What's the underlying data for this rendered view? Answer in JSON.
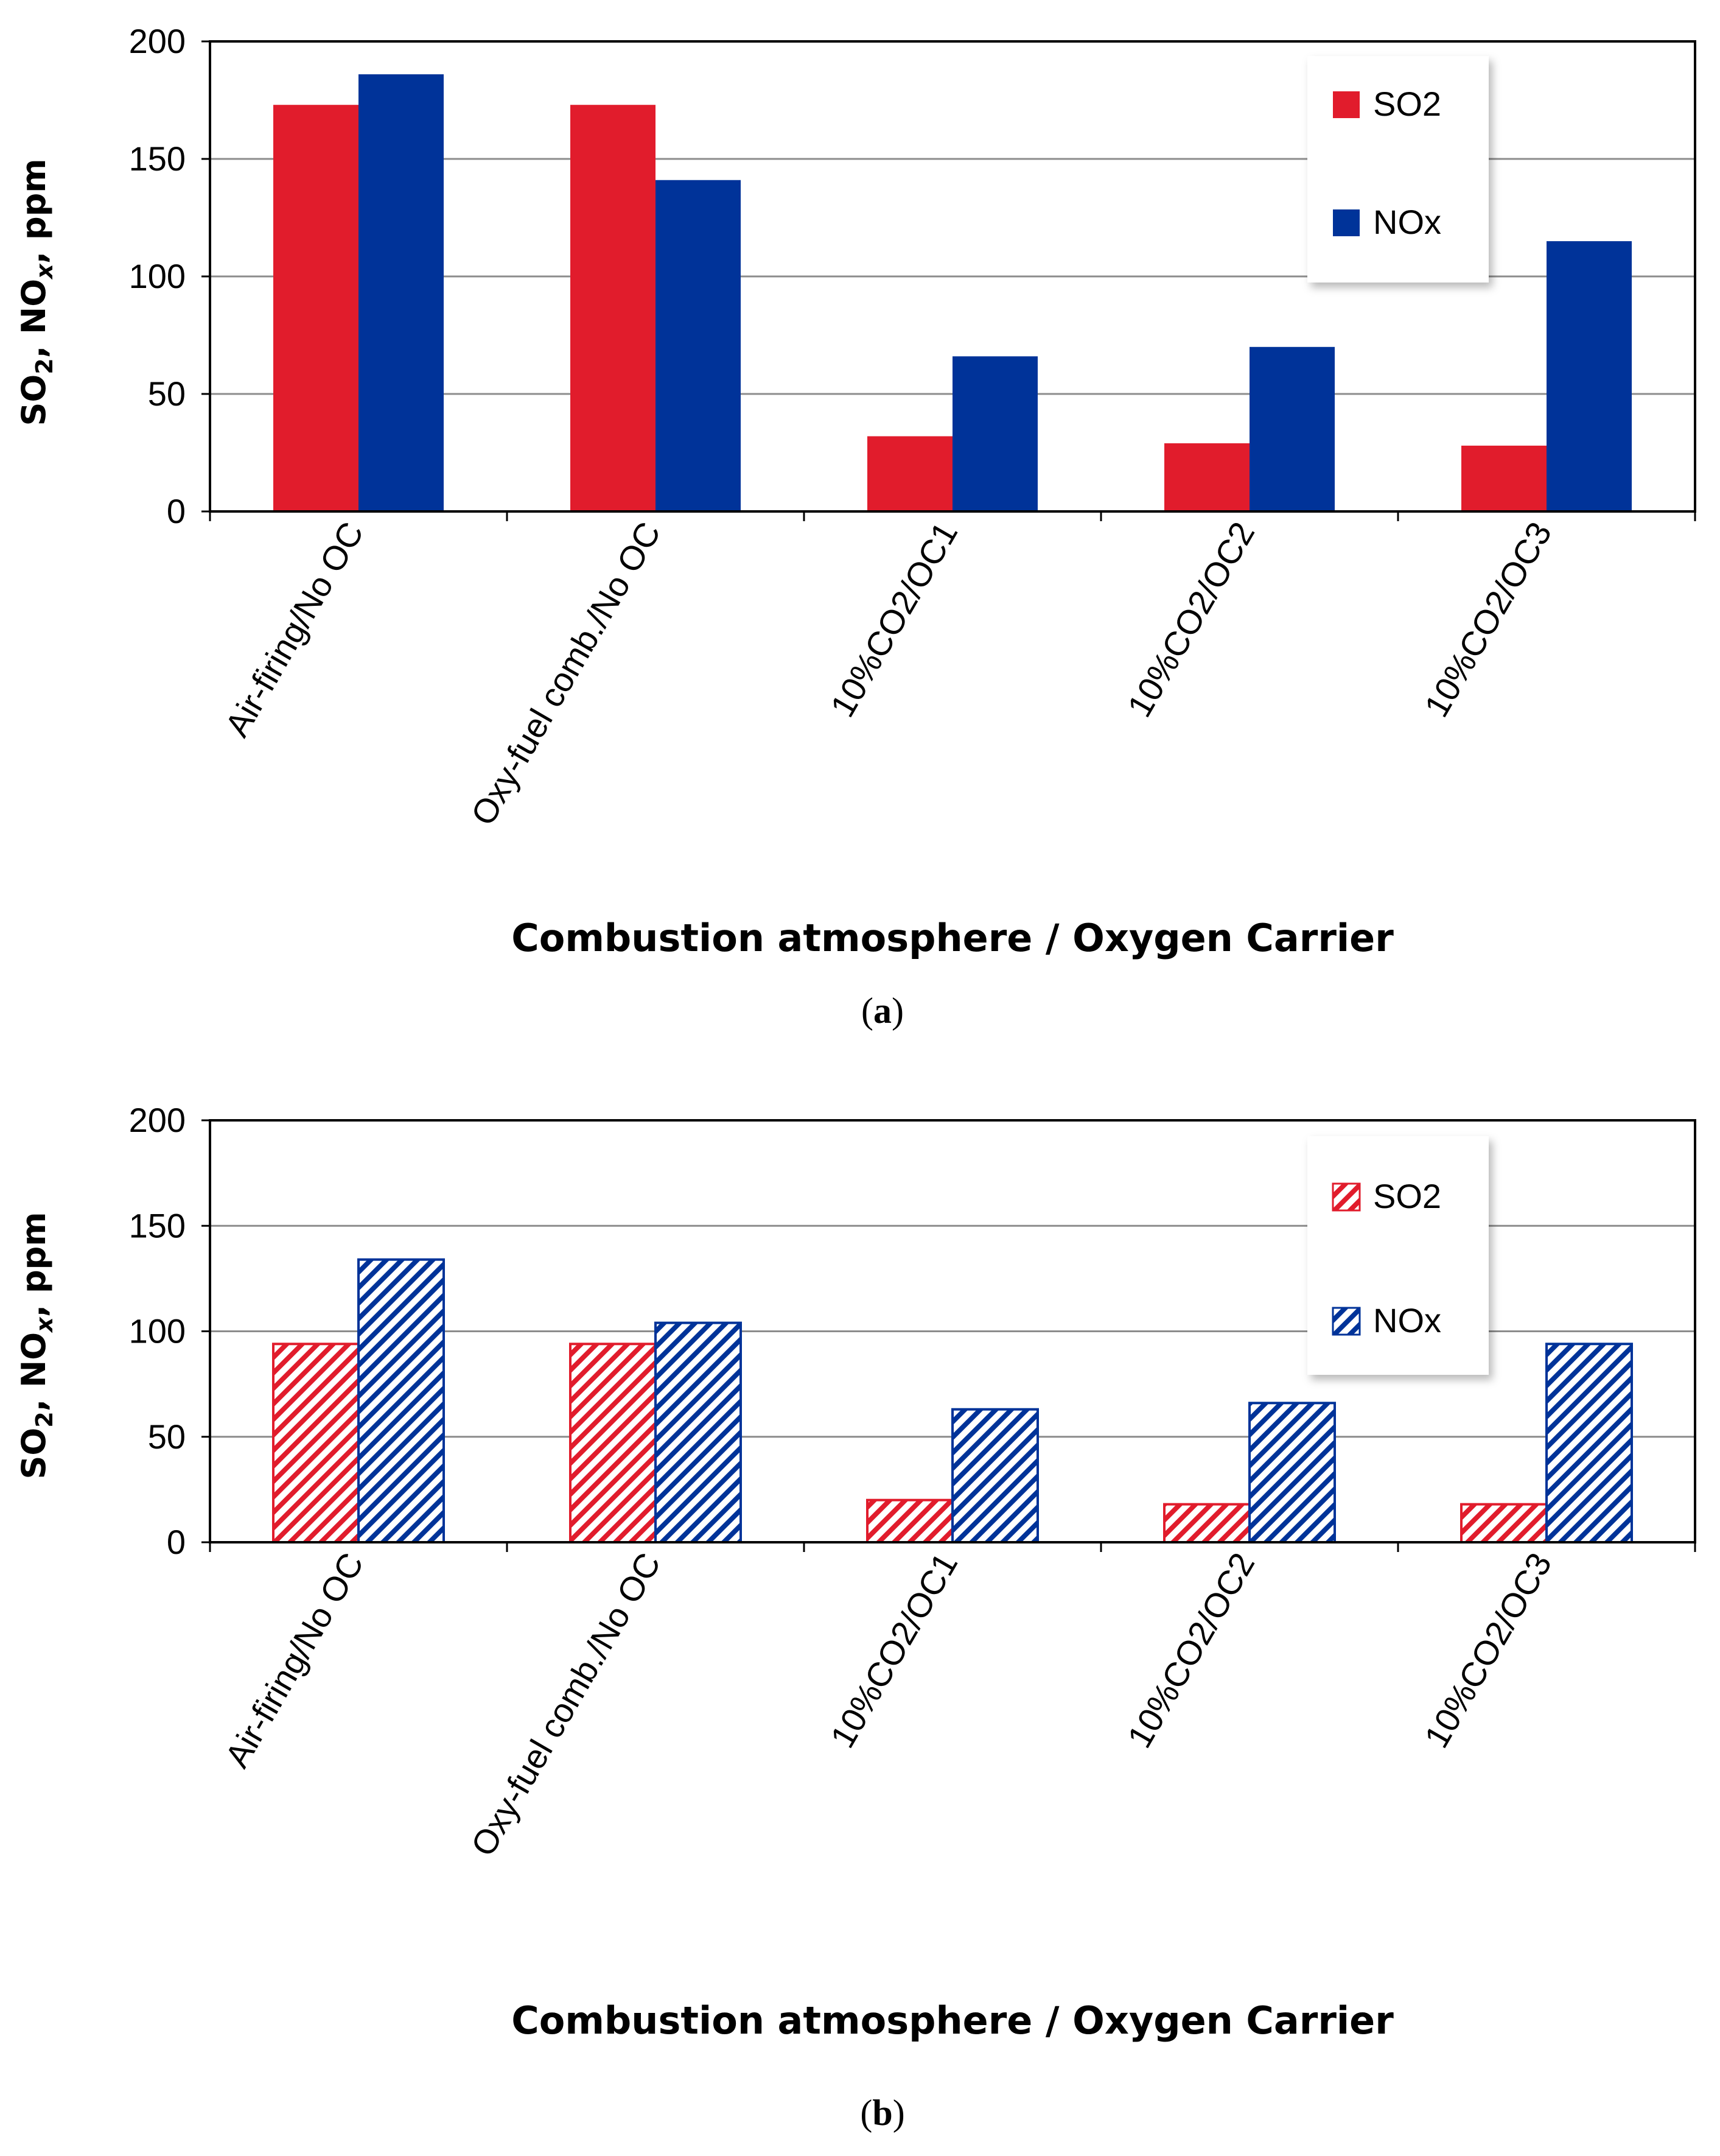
{
  "colors": {
    "so2": "#e11c2c",
    "nox": "#003399",
    "grid": "#8c8c8c",
    "axis": "#000000"
  },
  "chart_data": [
    {
      "type": "bar",
      "title": "",
      "caption_letter": "a",
      "xlabel": "Combustion atmosphere / Oxygen Carrier",
      "ylabel": {
        "main": "SO",
        "sub1": "2",
        "mid": ", NO",
        "sub2": "x",
        "tail": ", ppm"
      },
      "ylim": [
        0,
        200
      ],
      "yticks": [
        0,
        50,
        100,
        150,
        200
      ],
      "grid": true,
      "legend": "top-right",
      "categories": [
        "Air-firing/No OC",
        "Oxy-fuel comb./No OC",
        "10%CO2/OC1",
        "10%CO2/OC2",
        "10%CO2/OC3"
      ],
      "series": [
        {
          "name": "SO2",
          "color": "#e11c2c",
          "pattern": "solid",
          "values": [
            173,
            173,
            32,
            29,
            28
          ]
        },
        {
          "name": "NOx",
          "color": "#003399",
          "pattern": "solid",
          "values": [
            186,
            141,
            66,
            70,
            115
          ]
        }
      ]
    },
    {
      "type": "bar",
      "title": "",
      "caption_letter": "b",
      "xlabel": "Combustion atmosphere / Oxygen Carrier",
      "ylabel": {
        "main": "SO",
        "sub1": "2",
        "mid": ", NO",
        "sub2": "x",
        "tail": ", ppm"
      },
      "ylim": [
        0,
        200
      ],
      "yticks": [
        0,
        50,
        100,
        150,
        200
      ],
      "grid": true,
      "legend": "top-right",
      "categories": [
        "Air-firing/No OC",
        "Oxy-fuel comb./No OC",
        "10%CO2/OC1",
        "10%CO2/OC2",
        "10%CO2/OC3"
      ],
      "series": [
        {
          "name": "SO2",
          "color": "#e11c2c",
          "pattern": "hatched",
          "values": [
            94,
            94,
            20,
            18,
            18
          ]
        },
        {
          "name": "NOx",
          "color": "#003399",
          "pattern": "hatched",
          "values": [
            134,
            104,
            63,
            66,
            94
          ]
        }
      ]
    }
  ]
}
